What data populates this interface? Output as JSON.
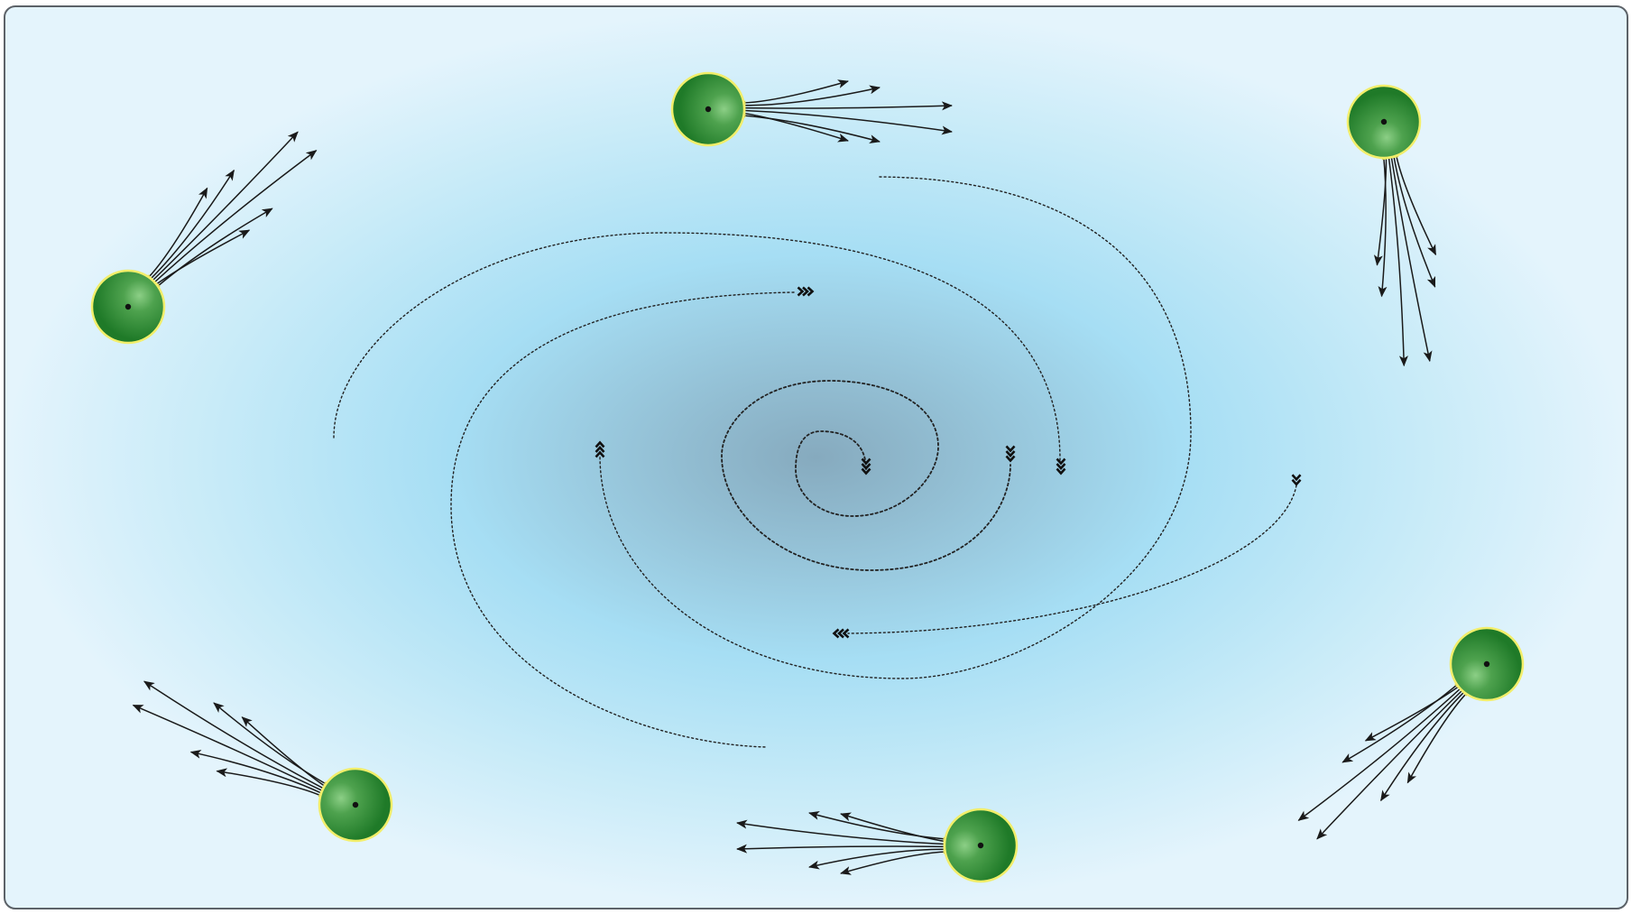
{
  "diagram": {
    "background": {
      "edge_color": "#e4f4fc",
      "mid_color": "#a6def4",
      "core_color": "#86aabe",
      "border_color": "#5c6268"
    },
    "cells": [
      {
        "id": "cell-top",
        "thrust_deg": 0
      },
      {
        "id": "cell-top-right",
        "thrust_deg": 80
      },
      {
        "id": "cell-upper-left",
        "thrust_deg": -45
      },
      {
        "id": "cell-lower-left",
        "thrust_deg": -155
      },
      {
        "id": "cell-bottom",
        "thrust_deg": 180
      },
      {
        "id": "cell-lower-right",
        "thrust_deg": 135
      }
    ],
    "cell_colors": {
      "fill_dark": "#1f7a28",
      "fill_light": "#8ccf86",
      "rim": "#f2ee6a",
      "nucleus": "#111111"
    },
    "arrow_color": "#1a1a1a",
    "spiral": {
      "line_color": "#222222",
      "marker_color": "#111111"
    }
  }
}
